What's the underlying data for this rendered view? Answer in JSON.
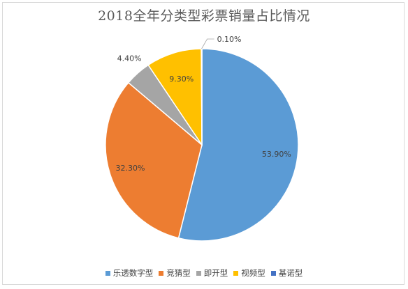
{
  "chart_data": {
    "type": "pie",
    "title": "2018全年分类型彩票销量占比情况",
    "categories": [
      "乐透数字型",
      "竞猜型",
      "即开型",
      "视频型",
      "基诺型"
    ],
    "values": [
      53.9,
      32.3,
      4.4,
      9.3,
      0.1
    ],
    "labels": [
      "53.90%",
      "32.30%",
      "4.40%",
      "9.30%",
      "0.10%"
    ],
    "colors": [
      "#5b9bd5",
      "#ed7d31",
      "#a5a5a5",
      "#ffc000",
      "#4472c4"
    ],
    "legend_position": "bottom",
    "slice_order": [
      0,
      1,
      2,
      3,
      4
    ]
  }
}
